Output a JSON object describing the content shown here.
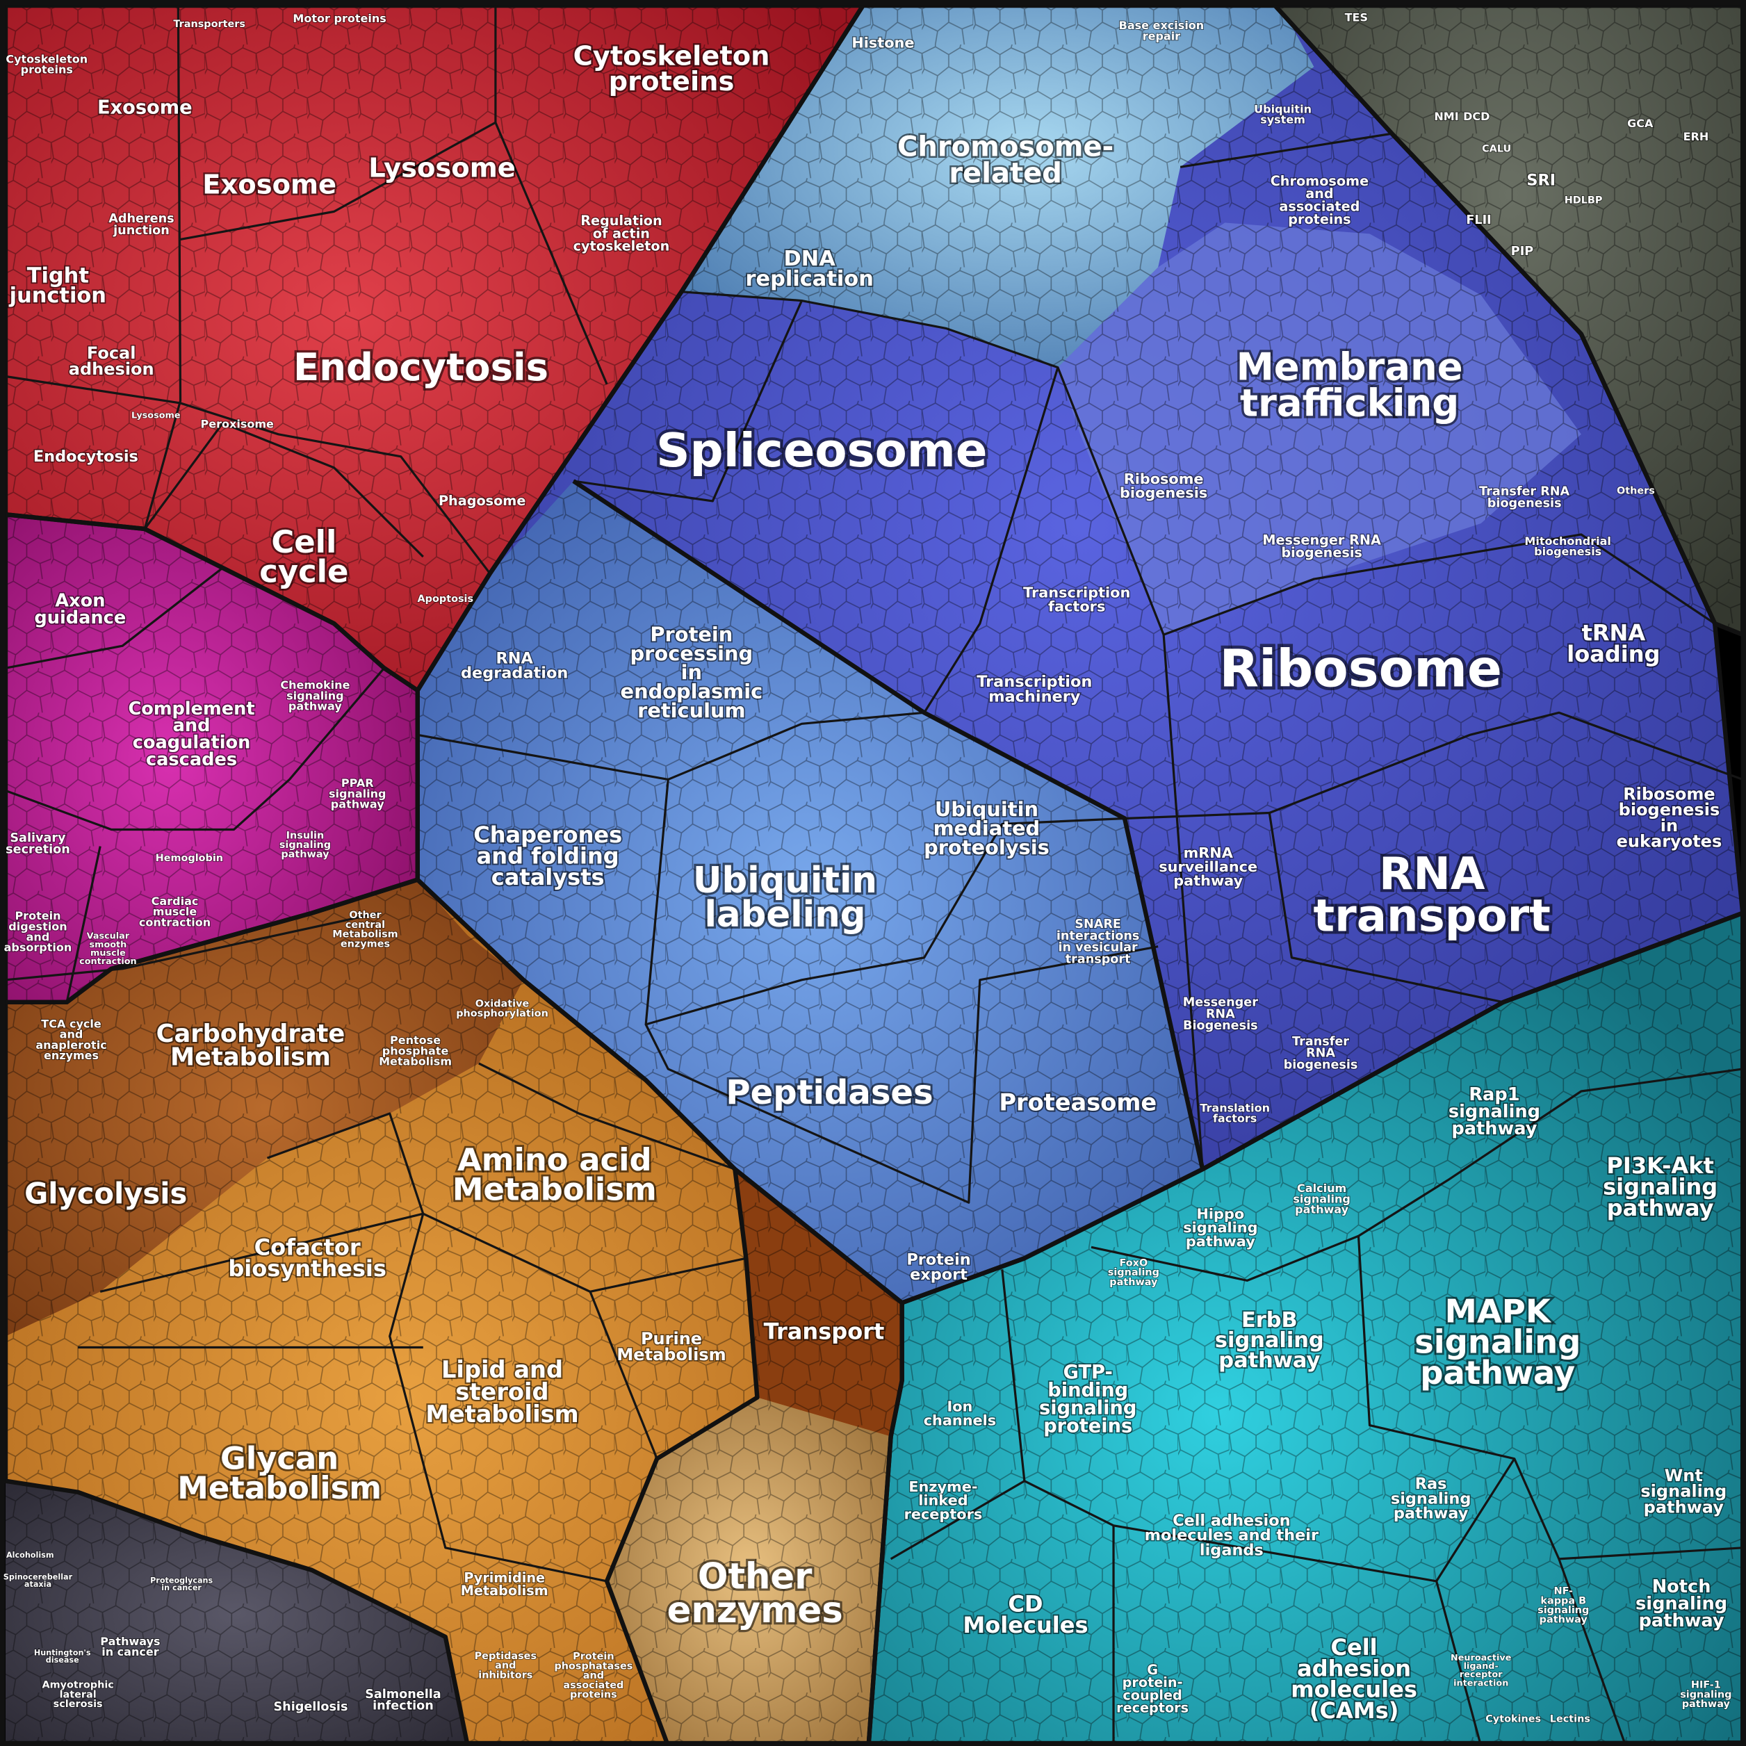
{
  "groups": [
    {
      "labels": [
        [
          "Cytoskeleton",
          "proteins"
        ],
        [
          "Endocytosis"
        ],
        [
          "Lysosome"
        ],
        [
          "Exosome"
        ],
        [
          "Cell",
          "cycle"
        ],
        [
          "Exosome"
        ],
        [
          "Tight",
          "junction"
        ],
        [
          "Focal",
          "adhesion"
        ],
        [
          "Adherens",
          "junction"
        ],
        [
          "Endocytosis"
        ],
        [
          "Regulation",
          "of actin",
          "cytoskeleton"
        ],
        [
          "Phagosome"
        ],
        [
          "Apoptosis"
        ],
        [
          "Motor proteins"
        ],
        [
          "Transporters"
        ],
        [
          "Cytoskeleton",
          "proteins"
        ],
        [
          "Peroxisome"
        ],
        [
          "Lysosome"
        ]
      ]
    },
    {
      "labels": [
        [
          "Axon",
          "guidance"
        ],
        [
          "Complement",
          "and",
          "coagulation",
          "cascades"
        ],
        [
          "PPAR",
          "signaling",
          "pathway"
        ],
        [
          "Chemokine",
          "signaling",
          "pathway"
        ],
        [
          "Insulin",
          "signaling",
          "pathway"
        ],
        [
          "Salivary",
          "secretion"
        ],
        [
          "Protein",
          "digestion",
          "and",
          "absorption"
        ],
        [
          "Cardiac",
          "muscle",
          "contraction"
        ],
        [
          "Hemoglobin"
        ],
        [
          "Vascular",
          "smooth",
          "muscle",
          "contraction"
        ]
      ]
    },
    {
      "labels": [
        [
          "Carbohydrate",
          "Metabolism"
        ],
        [
          "Glycolysis"
        ],
        [
          "Amino acid",
          "Metabolism"
        ],
        [
          "Cofactor",
          "biosynthesis"
        ],
        [
          "Glycan",
          "Metabolism"
        ],
        [
          "Lipid and",
          "steroid",
          "Metabolism"
        ],
        [
          "Purine",
          "Metabolism"
        ],
        [
          "Transport"
        ],
        [
          "Other",
          "enzymes"
        ],
        [
          "Pyrimidine",
          "Metabolism"
        ],
        [
          "TCA cycle",
          "and",
          "anaplerotic",
          "enzymes"
        ],
        [
          "Pentose",
          "phosphate",
          "Metabolism"
        ],
        [
          "Oxidative",
          "phosphorylation"
        ],
        [
          "Other",
          "central",
          "Metabolism",
          "enzymes"
        ],
        [
          "Peptidases",
          "and",
          "inhibitors"
        ],
        [
          "Protein",
          "phosphatases",
          "and",
          "associated",
          "proteins"
        ]
      ]
    },
    {
      "labels": [
        [
          "Pathways",
          "in cancer"
        ],
        [
          "Shigellosis"
        ],
        [
          "Salmonella",
          "infection"
        ],
        [
          "Amyotrophic",
          "lateral",
          "sclerosis"
        ],
        [
          "Huntington's",
          "disease"
        ],
        [
          "Spinocerebellar",
          "ataxia"
        ],
        [
          "Alcoholism"
        ],
        [
          "Proteoglycans",
          "in cancer"
        ]
      ]
    },
    {
      "labels": [
        [
          "Spliceosome"
        ],
        [
          "Ribosome"
        ],
        [
          "RNA",
          "transport"
        ],
        [
          "Membrane",
          "trafficking"
        ],
        [
          "Chromosome-",
          "related"
        ],
        [
          "DNA",
          "replication"
        ],
        [
          "Ubiquitin",
          "labeling"
        ],
        [
          "Protein",
          "processing",
          "in",
          "endoplasmic",
          "reticulum"
        ],
        [
          "Chaperones",
          "and folding",
          "catalysts"
        ],
        [
          "Ubiquitin",
          "mediated",
          "proteolysis"
        ],
        [
          "Peptidases"
        ],
        [
          "Proteasome"
        ],
        [
          "RNA",
          "degradation"
        ],
        [
          "tRNA",
          "loading"
        ],
        [
          "Ribosome",
          "biogenesis",
          "in",
          "eukaryotes"
        ],
        [
          "Transcription",
          "factors"
        ],
        [
          "Transcription",
          "machinery"
        ],
        [
          "mRNA",
          "surveillance",
          "pathway"
        ],
        [
          "Messenger",
          "RNA",
          "Biogenesis"
        ],
        [
          "Transfer",
          "RNA",
          "biogenesis"
        ],
        [
          "Translation",
          "factors"
        ],
        [
          "SNARE",
          "interactions",
          "in vesicular",
          "transport"
        ],
        [
          "Protein",
          "export"
        ],
        [
          "Histone"
        ],
        [
          "Ribosome",
          "biogenesis"
        ],
        [
          "Transfer RNA",
          "biogenesis"
        ],
        [
          "Messenger RNA",
          "biogenesis"
        ],
        [
          "Chromosome",
          "and",
          "associated",
          "proteins"
        ],
        [
          "Ubiquitin",
          "system"
        ],
        [
          "Mitochondrial",
          "biogenesis"
        ],
        [
          "Base excision",
          "repair"
        ]
      ]
    },
    {
      "labels": [
        [
          "MAPK",
          "signaling",
          "pathway"
        ],
        [
          "PI3K-Akt",
          "signaling",
          "pathway"
        ],
        [
          "Rap1",
          "signaling",
          "pathway"
        ],
        [
          "ErbB",
          "signaling",
          "pathway"
        ],
        [
          "GTP-",
          "binding",
          "signaling",
          "proteins"
        ],
        [
          "Cell adhesion",
          "molecules and their",
          "ligands"
        ],
        [
          "CD",
          "Molecules"
        ],
        [
          "Cell",
          "adhesion",
          "molecules",
          "(CAMs)"
        ],
        [
          "Hippo",
          "signaling",
          "pathway"
        ],
        [
          "Ion",
          "channels"
        ],
        [
          "Enzyme-",
          "linked",
          "receptors"
        ],
        [
          "Ras",
          "signaling",
          "pathway"
        ],
        [
          "Wnt",
          "signaling",
          "pathway"
        ],
        [
          "Notch",
          "signaling",
          "pathway"
        ],
        [
          "G",
          "protein-",
          "coupled",
          "receptors"
        ],
        [
          "Calcium",
          "signaling",
          "pathway"
        ],
        [
          "FoxO",
          "signaling",
          "pathway"
        ],
        [
          "NF-",
          "kappa B",
          "signaling",
          "pathway"
        ],
        [
          "Neuroactive",
          "ligand-",
          "receptor",
          "interaction"
        ],
        [
          "Cytokines"
        ],
        [
          "Lectins"
        ],
        [
          "HIF-1",
          "signaling",
          "pathway"
        ]
      ]
    },
    {
      "labels": [
        [
          "SRI"
        ],
        [
          "TES"
        ],
        [
          "FLII"
        ],
        [
          "PIP"
        ],
        [
          "Others"
        ],
        [
          "GCA"
        ],
        [
          "NMI"
        ],
        [
          "DCD"
        ],
        [
          "ERH"
        ],
        [
          "CALU"
        ],
        [
          "HDLBP"
        ]
      ]
    }
  ]
}
